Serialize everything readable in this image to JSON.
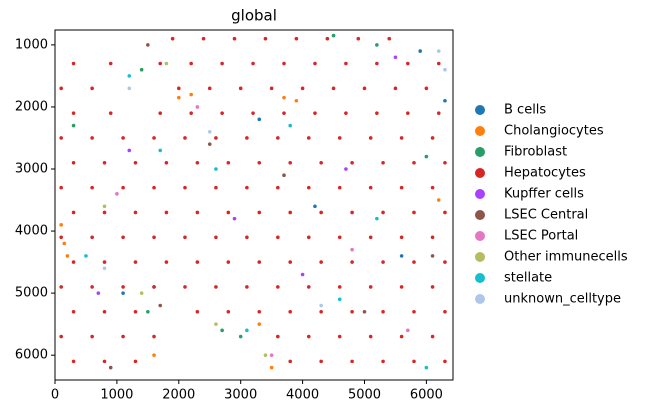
{
  "chart_data": {
    "type": "scatter",
    "title": "global",
    "xlim": [
      0,
      6430
    ],
    "ylim": [
      6400,
      760
    ],
    "xticks": [
      0,
      1000,
      2000,
      3000,
      4000,
      5000,
      6000
    ],
    "yticks": [
      1000,
      2000,
      3000,
      4000,
      5000,
      6000
    ],
    "series": [
      {
        "name": "B cells",
        "color": "#1f77b4",
        "x": [
          5900,
          6300,
          4200,
          1100,
          3300,
          5600
        ],
        "y": [
          1100,
          1900,
          3600,
          5000,
          2200,
          4400
        ]
      },
      {
        "name": "Cholangiocytes",
        "color": "#ff7f0e",
        "x": [
          2000,
          2200,
          3700,
          3900,
          100,
          150,
          200,
          3300,
          3500,
          1600,
          6200
        ],
        "y": [
          1850,
          1800,
          1850,
          1900,
          3900,
          4200,
          4400,
          5500,
          6200,
          6000,
          3500
        ]
      },
      {
        "name": "Fibroblast",
        "color": "#279e68",
        "x": [
          4500,
          5200,
          1400,
          1600,
          1500,
          2700,
          3000,
          6000,
          300
        ],
        "y": [
          850,
          1000,
          1400,
          4900,
          5300,
          5600,
          5700,
          2800,
          2300
        ]
      },
      {
        "name": "Hepatocytes",
        "color": "#d62728",
        "x": [
          1900,
          2400,
          2900,
          3400,
          3900,
          4400,
          4900,
          5400,
          300,
          900,
          1700,
          2200,
          2700,
          3200,
          3700,
          4200,
          4700,
          5200,
          5700,
          6200,
          100,
          600,
          2000,
          2500,
          3000,
          3500,
          4000,
          4500,
          5000,
          5500,
          6000,
          300,
          900,
          1700,
          2200,
          2700,
          3200,
          3700,
          4200,
          4700,
          5200,
          5700,
          6200,
          100,
          600,
          1100,
          1600,
          2100,
          2600,
          3100,
          3600,
          4100,
          4600,
          5100,
          5600,
          6100,
          300,
          800,
          1300,
          1800,
          2300,
          2800,
          3300,
          3800,
          4300,
          4800,
          5300,
          5800,
          6300,
          100,
          600,
          1100,
          1600,
          2100,
          2600,
          3100,
          3600,
          4100,
          4600,
          5100,
          5600,
          6100,
          300,
          800,
          1300,
          1800,
          2300,
          2800,
          3300,
          3800,
          4300,
          4800,
          5300,
          5800,
          6300,
          100,
          600,
          1100,
          1600,
          2100,
          2600,
          3100,
          3600,
          4100,
          4600,
          5100,
          5600,
          6100,
          300,
          800,
          1300,
          1800,
          2300,
          2800,
          3300,
          3800,
          4300,
          4800,
          5300,
          5800,
          6300,
          100,
          600,
          1100,
          1600,
          2100,
          2600,
          3100,
          3600,
          4100,
          4600,
          5100,
          5600,
          6100,
          300,
          800,
          1300,
          2300,
          2800,
          3300,
          3800,
          4300,
          4800,
          5300,
          5800,
          6300,
          100,
          600,
          1100,
          1600,
          3600,
          4100,
          4600,
          5100,
          5600,
          6100,
          300,
          800,
          1300,
          3800,
          4300,
          4800,
          5300,
          5800,
          6300
        ],
        "y": [
          900,
          900,
          900,
          900,
          900,
          900,
          900,
          900,
          1300,
          1300,
          1300,
          1300,
          1300,
          1300,
          1300,
          1300,
          1300,
          1300,
          1300,
          1300,
          1700,
          1700,
          1700,
          1700,
          1700,
          1700,
          1700,
          1700,
          1700,
          1700,
          1700,
          2100,
          2100,
          2100,
          2100,
          2100,
          2100,
          2100,
          2100,
          2100,
          2100,
          2100,
          2100,
          2500,
          2500,
          2500,
          2500,
          2500,
          2500,
          2500,
          2500,
          2500,
          2500,
          2500,
          2500,
          2500,
          2900,
          2900,
          2900,
          2900,
          2900,
          2900,
          2900,
          2900,
          2900,
          2900,
          2900,
          2900,
          2900,
          3300,
          3300,
          3300,
          3300,
          3300,
          3300,
          3300,
          3300,
          3300,
          3300,
          3300,
          3300,
          3300,
          3700,
          3700,
          3700,
          3700,
          3700,
          3700,
          3700,
          3700,
          3700,
          3700,
          3700,
          3700,
          3700,
          4100,
          4100,
          4100,
          4100,
          4100,
          4100,
          4100,
          4100,
          4100,
          4100,
          4100,
          4100,
          4100,
          4500,
          4500,
          4500,
          4500,
          4500,
          4500,
          4500,
          4500,
          4500,
          4500,
          4500,
          4500,
          4500,
          4900,
          4900,
          4900,
          4900,
          4900,
          4900,
          4900,
          4900,
          4900,
          4900,
          4900,
          4900,
          4900,
          5300,
          5300,
          5300,
          5300,
          5300,
          5300,
          5300,
          5300,
          5300,
          5300,
          5300,
          5300,
          5700,
          5700,
          5700,
          5700,
          5700,
          5700,
          5700,
          5700,
          5700,
          5700,
          6100,
          6100,
          6100,
          6100,
          6100,
          6100,
          6100,
          6100,
          6100
        ]
      },
      {
        "name": "Kupffer cells",
        "color": "#aa40fc",
        "x": [
          5500,
          1200,
          2900,
          4000,
          700,
          4700
        ],
        "y": [
          1200,
          2700,
          3800,
          4700,
          5000,
          3000
        ]
      },
      {
        "name": "LSEC Central",
        "color": "#8c564b",
        "x": [
          1500,
          2500,
          3700,
          5000,
          900,
          1700,
          6100
        ],
        "y": [
          1000,
          2600,
          3100,
          5300,
          6200,
          5200,
          4400
        ]
      },
      {
        "name": "LSEC Portal",
        "color": "#e377c2",
        "x": [
          2300,
          4800,
          1000,
          3500,
          5700
        ],
        "y": [
          2000,
          4300,
          3400,
          6000,
          5600
        ]
      },
      {
        "name": "Other immunecells",
        "color": "#b5bd61",
        "x": [
          1800,
          2600,
          3400,
          1400,
          800
        ],
        "y": [
          1300,
          5500,
          6000,
          5000,
          3600
        ]
      },
      {
        "name": "stellate",
        "color": "#17becf",
        "x": [
          1200,
          3800,
          2600,
          5200,
          500,
          4600,
          3100,
          6000,
          1700
        ],
        "y": [
          1500,
          2300,
          3000,
          3800,
          4400,
          5100,
          5600,
          6200,
          2700
        ]
      },
      {
        "name": "unknown_celltype",
        "color": "#aec7e8",
        "x": [
          6200,
          6300,
          1200,
          4300,
          2500,
          800
        ],
        "y": [
          1100,
          1400,
          1700,
          5200,
          2400,
          4600
        ]
      }
    ]
  }
}
